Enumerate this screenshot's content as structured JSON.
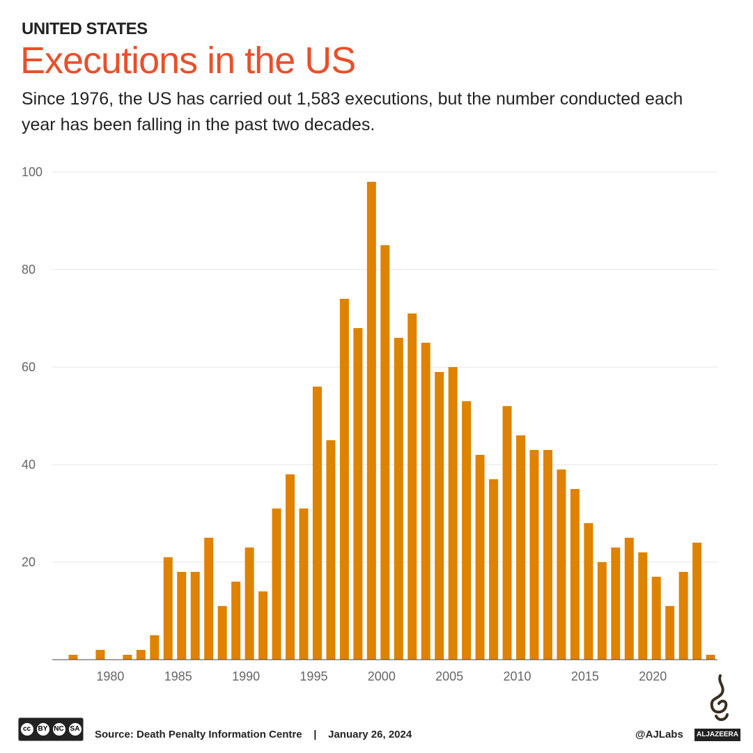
{
  "header": {
    "kicker": "UNITED STATES",
    "title": "Executions in the US",
    "subtitle": "Since 1976, the US has carried out 1,583 executions, but the number conducted each year has been falling in the past two decades."
  },
  "chart_data": {
    "type": "bar",
    "title": "",
    "xlabel": "",
    "ylabel": "",
    "ylim": [
      0,
      100
    ],
    "yticks": [
      20,
      40,
      60,
      80,
      100
    ],
    "xticks": [
      1980,
      1985,
      1990,
      1995,
      2000,
      2005,
      2010,
      2015,
      2020
    ],
    "grid": true,
    "bar_color": "#df8200",
    "categories": [
      1977,
      1978,
      1979,
      1980,
      1981,
      1982,
      1983,
      1984,
      1985,
      1986,
      1987,
      1988,
      1989,
      1990,
      1991,
      1992,
      1993,
      1994,
      1995,
      1996,
      1997,
      1998,
      1999,
      2000,
      2001,
      2002,
      2003,
      2004,
      2005,
      2006,
      2007,
      2008,
      2009,
      2010,
      2011,
      2012,
      2013,
      2014,
      2015,
      2016,
      2017,
      2018,
      2019,
      2020,
      2021,
      2022,
      2023,
      2024
    ],
    "values": [
      1,
      0,
      2,
      0,
      1,
      2,
      5,
      21,
      18,
      18,
      25,
      11,
      16,
      23,
      14,
      31,
      38,
      31,
      56,
      45,
      74,
      68,
      98,
      85,
      66,
      71,
      65,
      59,
      60,
      53,
      42,
      37,
      52,
      46,
      43,
      43,
      39,
      35,
      28,
      20,
      23,
      25,
      22,
      17,
      11,
      18,
      24,
      1
    ]
  },
  "footer": {
    "source": "Source: Death Penalty Information Centre",
    "separator": "|",
    "date": "January 26, 2024",
    "handle": "@AJLabs",
    "brand": "ALJAZEERA",
    "license": [
      "cc",
      "BY",
      "NC",
      "SA"
    ]
  },
  "colors": {
    "title": "#e8502a",
    "bar": "#df8200"
  }
}
